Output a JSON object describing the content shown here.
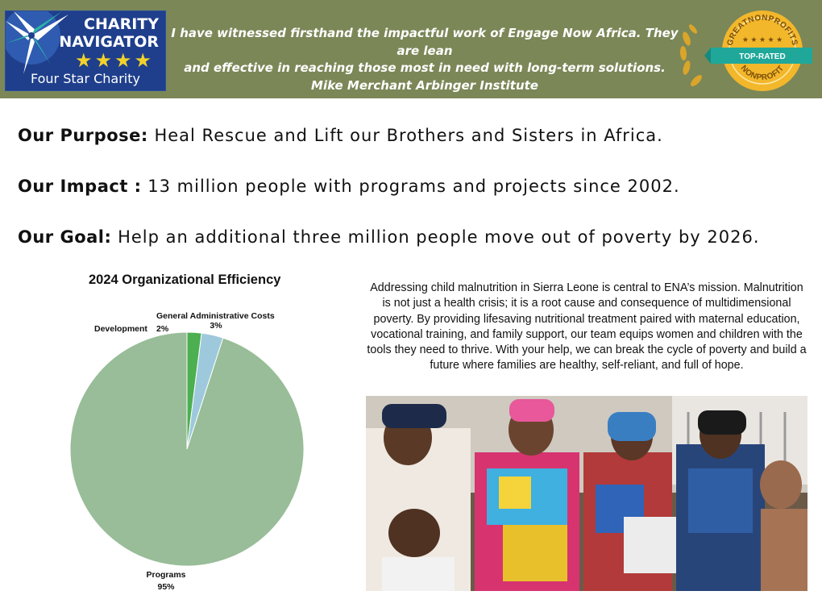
{
  "banner": {
    "badge": {
      "title_line1": "CHARITY",
      "title_line2": "NAVIGATOR",
      "stars": "★★★★",
      "subtitle": "Four Star Charity"
    },
    "quote_lines": [
      "I have witnessed firsthand the impactful work of Engage Now Africa. They are lean",
      "and effective in reaching those most in need with long-term solutions.",
      "Mike Merchant Arbinger Institute"
    ],
    "seal": {
      "top_text": "GREATNONPROFITS",
      "ribbon": "TOP-RATED",
      "bottom_text": "NONPROFIT",
      "colors": {
        "gold": "#f2b72b",
        "teal": "#1fa89a",
        "laurel": "#d9a52a"
      }
    },
    "background_color": "#7b8757"
  },
  "statements": {
    "purpose": {
      "label": "Our Purpose:",
      "text": " Heal Rescue and Lift our Brothers and Sisters in Africa."
    },
    "impact": {
      "label": "Our Impact :",
      "text": " 13 million people with programs and projects since 2002."
    },
    "goal": {
      "label": "Our Goal:",
      "text": " Help an additional three million people move out of poverty by 2026."
    }
  },
  "chart_data": {
    "type": "pie",
    "title": "2024 Organizational Efficiency",
    "slices": [
      {
        "label": "Development",
        "value_label": "2%",
        "value": 2,
        "color": "#4caf50"
      },
      {
        "label": "General Administrative Costs",
        "value_label": "3%",
        "value": 3,
        "color": "#9ec9dc"
      },
      {
        "label": "Programs",
        "value_label": "95%",
        "value": 95,
        "color": "#98bd98"
      }
    ]
  },
  "description": "Addressing child malnutrition in Sierra Leone is central to ENA’s mission. Malnutrition is not just a health crisis; it is a root cause and consequence of multidimensional poverty. By providing lifesaving nutritional treatment paired with maternal education, vocational training, and family support, our team equips women and children with the tools they need to thrive. With your help, we can break the cycle of poverty and build a future where families are healthy, self-reliant, and full of hope."
}
